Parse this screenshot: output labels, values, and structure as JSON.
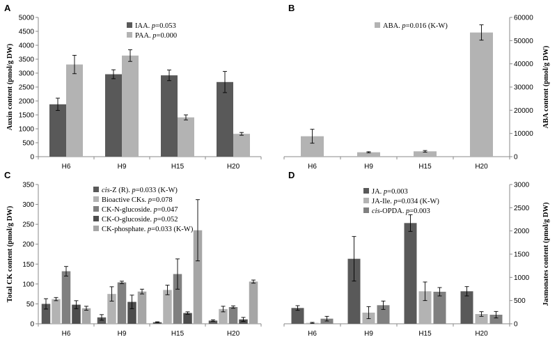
{
  "chart_data": [
    {
      "panel": "A",
      "type": "bar",
      "categories": [
        "H6",
        "H9",
        "H15",
        "H20"
      ],
      "ylabel": "Auxin content (pmol/g DW)",
      "ylim": [
        0,
        5000
      ],
      "yticks": [
        0,
        500,
        1000,
        1500,
        2000,
        2500,
        3000,
        3500,
        4000,
        4500,
        5000
      ],
      "axis_side": "left",
      "legend_placement": "top-center",
      "series": [
        {
          "name": "IAA",
          "p_label": "p=0.053",
          "color": "#595959",
          "values": [
            1880,
            2960,
            2920,
            2680
          ],
          "errors": [
            220,
            160,
            190,
            380
          ]
        },
        {
          "name": "PAA",
          "p_label": "p=0.000",
          "color": "#b3b3b3",
          "values": [
            3310,
            3630,
            1410,
            820
          ],
          "errors": [
            330,
            210,
            90,
            50
          ]
        }
      ]
    },
    {
      "panel": "B",
      "type": "bar",
      "categories": [
        "H6",
        "H9",
        "H15",
        "H20"
      ],
      "ylabel": "ABA content (pmol/g DW)",
      "ylim": [
        0,
        60000
      ],
      "yticks": [
        0,
        10000,
        20000,
        30000,
        40000,
        50000,
        60000
      ],
      "axis_side": "right",
      "legend_placement": "top-center",
      "series": [
        {
          "name": "ABA",
          "p_label": "p=0.016 (K-W)",
          "color": "#b3b3b3",
          "values": [
            8800,
            1900,
            2300,
            53500
          ],
          "errors": [
            3000,
            250,
            350,
            3300
          ]
        }
      ]
    },
    {
      "panel": "C",
      "type": "bar",
      "categories": [
        "H6",
        "H9",
        "H15",
        "H20"
      ],
      "ylabel": "Total CK content (pmol/g DW)",
      "ylim": [
        0,
        350
      ],
      "yticks": [
        0,
        50,
        100,
        150,
        200,
        250,
        300,
        350
      ],
      "axis_side": "left",
      "legend_placement": "top-center",
      "series": [
        {
          "name": "cis-Z (R)",
          "name_italic": "cis",
          "name_rest": "-Z (R)",
          "p_label": "p=0.033 (K-W)",
          "color": "#595959",
          "values": [
            50,
            16,
            4,
            8
          ],
          "errors": [
            13,
            7,
            1,
            2
          ]
        },
        {
          "name": "Bioactive CKs",
          "name_italic": "",
          "name_rest": "Bioactive CKs",
          "p_label": "p=0.078",
          "color": "#b3b3b3",
          "values": [
            62,
            75,
            85,
            37
          ],
          "errors": [
            4,
            18,
            12,
            7
          ]
        },
        {
          "name": "CK-N-glucoside",
          "name_italic": "",
          "name_rest": "CK-N-glucoside",
          "p_label": "p=0.047",
          "color": "#808080",
          "values": [
            132,
            104,
            125,
            42
          ],
          "errors": [
            12,
            3,
            38,
            3
          ]
        },
        {
          "name": "CK-O-glucoside",
          "name_italic": "",
          "name_rest": "CK-O-glucoside",
          "p_label": "p=0.052",
          "color": "#4d4d4d",
          "values": [
            48,
            55,
            27,
            11
          ],
          "errors": [
            10,
            17,
            3,
            5
          ]
        },
        {
          "name": "CK-phosphate",
          "name_italic": "",
          "name_rest": "CK-phosphate",
          "p_label": "p=0.033 (K-W)",
          "color": "#a6a6a6",
          "values": [
            39,
            81,
            235,
            106
          ],
          "errors": [
            5,
            6,
            77,
            4
          ]
        }
      ]
    },
    {
      "panel": "D",
      "type": "bar",
      "categories": [
        "H6",
        "H9",
        "H15",
        "H20"
      ],
      "ylabel": "Jasmonates content (pmol/g DW)",
      "ylim": [
        0,
        3000
      ],
      "yticks": [
        0,
        500,
        1000,
        1500,
        2000,
        2500,
        3000
      ],
      "axis_side": "right",
      "legend_placement": "top-center",
      "series": [
        {
          "name": "JA",
          "name_italic": "",
          "name_rest": "JA",
          "p_label": "p=0.003",
          "color": "#595959",
          "values": [
            340,
            1400,
            2170,
            700
          ],
          "errors": [
            50,
            480,
            180,
            100
          ]
        },
        {
          "name": "JA-Ile",
          "name_italic": "",
          "name_rest": "JA-Ile",
          "p_label": "p=0.034 (K-W)",
          "color": "#b3b3b3",
          "values": [
            20,
            240,
            700,
            210
          ],
          "errors": [
            10,
            130,
            200,
            50
          ]
        },
        {
          "name": "cis-OPDA",
          "name_italic": "cis",
          "name_rest": "-OPDA",
          "p_label": "p=0.003",
          "color": "#808080",
          "values": [
            110,
            400,
            690,
            195
          ],
          "errors": [
            50,
            90,
            90,
            70
          ]
        }
      ]
    }
  ]
}
